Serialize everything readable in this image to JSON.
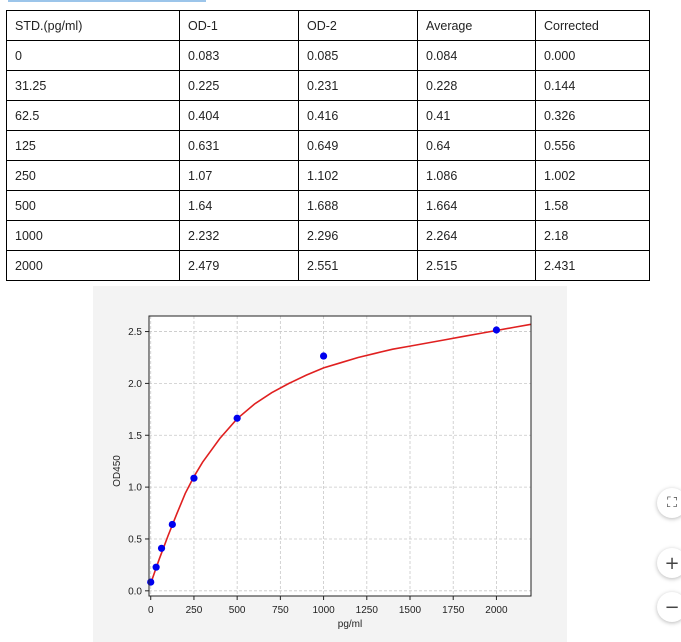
{
  "table": {
    "headers": [
      "STD.(pg/ml)",
      "OD-1",
      "OD-2",
      "Average",
      "Corrected"
    ],
    "rows": [
      [
        "0",
        "0.083",
        "0.085",
        "0.084",
        "0.000"
      ],
      [
        "31.25",
        "0.225",
        "0.231",
        "0.228",
        "0.144"
      ],
      [
        "62.5",
        "0.404",
        "0.416",
        "0.41",
        "0.326"
      ],
      [
        "125",
        "0.631",
        "0.649",
        "0.64",
        "0.556"
      ],
      [
        "250",
        "1.07",
        "1.102",
        "1.086",
        "1.002"
      ],
      [
        "500",
        "1.64",
        "1.688",
        "1.664",
        "1.58"
      ],
      [
        "1000",
        "2.232",
        "2.296",
        "2.264",
        "2.18"
      ],
      [
        "2000",
        "2.479",
        "2.551",
        "2.515",
        "2.431"
      ]
    ]
  },
  "chart_data": {
    "type": "scatter",
    "xlabel": "pg/ml",
    "ylabel": "OD450",
    "xlim": [
      -10,
      2200
    ],
    "ylim": [
      -0.05,
      2.65
    ],
    "xticks": [
      0,
      250,
      500,
      750,
      1000,
      1250,
      1500,
      1750,
      2000
    ],
    "yticks": [
      0.0,
      0.5,
      1.0,
      1.5,
      2.0,
      2.5
    ],
    "ytick_labels": [
      "0.0",
      "0.5",
      "1.0",
      "1.5",
      "2.0",
      "2.5"
    ],
    "grid": true,
    "points": {
      "x": [
        0,
        31.25,
        62.5,
        125,
        250,
        500,
        1000,
        2000
      ],
      "y": [
        0.084,
        0.228,
        0.41,
        0.64,
        1.086,
        1.664,
        2.264,
        2.515
      ],
      "color": "#0000ee"
    },
    "fit_curve": {
      "color": "#e02020",
      "x": [
        0,
        25,
        50,
        75,
        100,
        150,
        200,
        250,
        300,
        400,
        500,
        600,
        700,
        800,
        900,
        1000,
        1100,
        1200,
        1300,
        1400,
        1500,
        1600,
        1700,
        1800,
        1900,
        2000,
        2100,
        2200
      ],
      "y": [
        0.07,
        0.19,
        0.31,
        0.42,
        0.53,
        0.74,
        0.94,
        1.1,
        1.24,
        1.47,
        1.66,
        1.8,
        1.91,
        2.0,
        2.08,
        2.15,
        2.2,
        2.25,
        2.29,
        2.33,
        2.36,
        2.39,
        2.42,
        2.45,
        2.48,
        2.51,
        2.54,
        2.57
      ]
    }
  },
  "controls": {
    "fit_icon": "⛶",
    "zoom_in": "+",
    "zoom_out": "−"
  }
}
